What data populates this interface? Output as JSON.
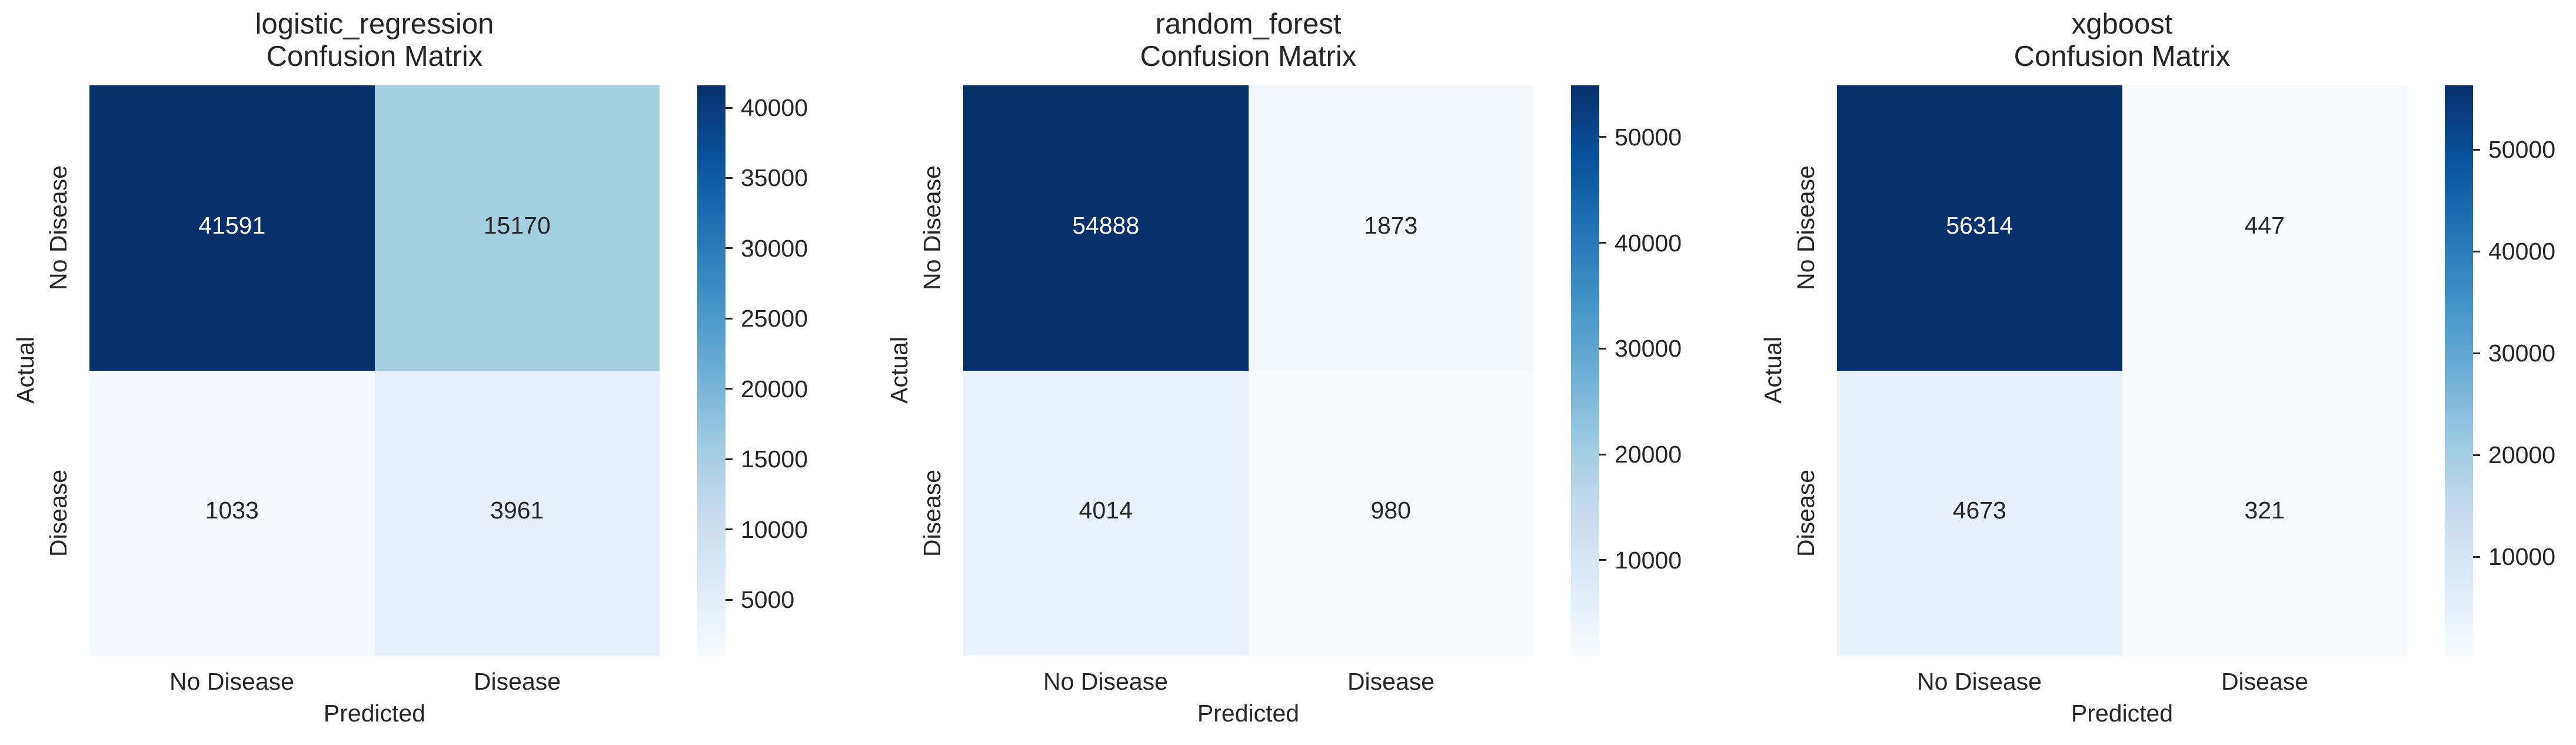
{
  "chart_data": [
    {
      "type": "heatmap",
      "title": "logistic_regression\nConfusion Matrix",
      "model": "logistic_regression",
      "subtitle": "Confusion Matrix",
      "xlabel": "Predicted",
      "ylabel": "Actual",
      "x_categories": [
        "No Disease",
        "Disease"
      ],
      "y_categories": [
        "No Disease",
        "Disease"
      ],
      "values": [
        [
          41591,
          15170
        ],
        [
          1033,
          3961
        ]
      ],
      "colormap": "Blues",
      "vmin": 1033,
      "vmax": 41591,
      "colorbar_ticks": [
        5000,
        10000,
        15000,
        20000,
        25000,
        30000,
        35000,
        40000
      ],
      "cell_colors": [
        [
          "#08306b",
          "#a6cee3"
        ],
        [
          "#f5f9fe",
          "#e6eff9"
        ]
      ],
      "text_colors": [
        [
          "#ffffff",
          "#262626"
        ],
        [
          "#262626",
          "#262626"
        ]
      ]
    },
    {
      "type": "heatmap",
      "title": "random_forest\nConfusion Matrix",
      "model": "random_forest",
      "subtitle": "Confusion Matrix",
      "xlabel": "Predicted",
      "ylabel": "Actual",
      "x_categories": [
        "No Disease",
        "Disease"
      ],
      "y_categories": [
        "No Disease",
        "Disease"
      ],
      "values": [
        [
          54888,
          1873
        ],
        [
          4014,
          980
        ]
      ],
      "colormap": "Blues",
      "vmin": 980,
      "vmax": 54888,
      "colorbar_ticks": [
        10000,
        20000,
        30000,
        40000,
        50000
      ],
      "cell_colors": [
        [
          "#08306b",
          "#f2f8fd"
        ],
        [
          "#eaf2fb",
          "#f7fbff"
        ]
      ],
      "text_colors": [
        [
          "#ffffff",
          "#262626"
        ],
        [
          "#262626",
          "#262626"
        ]
      ]
    },
    {
      "type": "heatmap",
      "title": "xgboost\nConfusion Matrix",
      "model": "xgboost",
      "subtitle": "Confusion Matrix",
      "xlabel": "Predicted",
      "ylabel": "Actual",
      "x_categories": [
        "No Disease",
        "Disease"
      ],
      "y_categories": [
        "No Disease",
        "Disease"
      ],
      "values": [
        [
          56314,
          447
        ],
        [
          4673,
          321
        ]
      ],
      "colormap": "Blues",
      "vmin": 321,
      "vmax": 56314,
      "colorbar_ticks": [
        10000,
        20000,
        30000,
        40000,
        50000
      ],
      "cell_colors": [
        [
          "#08306b",
          "#f6faff"
        ],
        [
          "#e8f0f9",
          "#f7fbff"
        ]
      ],
      "text_colors": [
        [
          "#ffffff",
          "#262626"
        ],
        [
          "#262626",
          "#262626"
        ]
      ]
    }
  ],
  "colormap_stops": [
    "#f7fbff",
    "#deebf7",
    "#c6dbef",
    "#9ecae1",
    "#6baed6",
    "#4292c6",
    "#2171b5",
    "#08519c",
    "#08306b"
  ]
}
